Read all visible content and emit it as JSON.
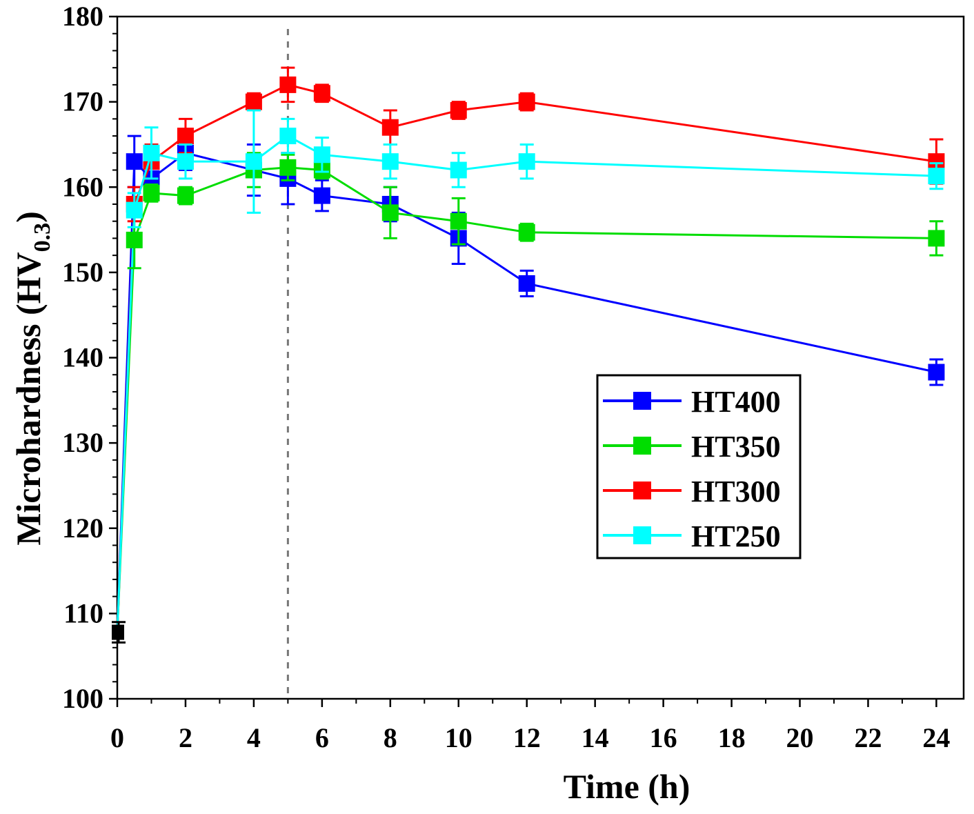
{
  "chart_data": {
    "type": "line",
    "title": "",
    "xlabel": "Time (h)",
    "ylabel": {
      "main": "Microhardness (HV",
      "subscript": "0.3",
      "close": ")"
    },
    "xlim": [
      0,
      24.8
    ],
    "ylim": [
      100,
      180
    ],
    "x_ticks": [
      0,
      2,
      4,
      6,
      8,
      10,
      12,
      14,
      16,
      18,
      20,
      22,
      24
    ],
    "x_tick_labels": [
      "0",
      "2",
      "4",
      "6",
      "8",
      "10",
      "12",
      "14",
      "16",
      "18",
      "20",
      "22",
      "24"
    ],
    "y_ticks": [
      100,
      110,
      120,
      130,
      140,
      150,
      160,
      170,
      180
    ],
    "y_tick_labels": [
      "100",
      "110",
      "120",
      "130",
      "140",
      "150",
      "160",
      "170",
      "180"
    ],
    "reference_line_x": 5,
    "initial_point": {
      "x": 0,
      "y": 107.8,
      "err": 1.2,
      "color": "#000000"
    },
    "legend_position": "center-right",
    "series": [
      {
        "name": "HT400",
        "color": "#0000ff",
        "x": [
          0.5,
          1,
          2,
          4,
          5,
          6,
          8,
          10,
          12,
          24
        ],
        "values": [
          163,
          161,
          164,
          162,
          161,
          159,
          158,
          154,
          148.7,
          138.3
        ],
        "errors": [
          3,
          1.5,
          2,
          3,
          3,
          1.8,
          2,
          3,
          1.5,
          1.5
        ]
      },
      {
        "name": "HT350",
        "color": "#00dd00",
        "x": [
          0.5,
          1,
          2,
          4,
          5,
          6,
          8,
          10,
          12,
          24
        ],
        "values": [
          153.8,
          159.3,
          159,
          162,
          162.3,
          162,
          157,
          156,
          154.7,
          154
        ],
        "errors": [
          3.3,
          1,
          1,
          2,
          1.5,
          1,
          3,
          2.7,
          1,
          2
        ]
      },
      {
        "name": "HT300",
        "color": "#ff0000",
        "x": [
          0.5,
          1,
          2,
          4,
          5,
          6,
          8,
          10,
          12,
          24
        ],
        "values": [
          158,
          163,
          166,
          170,
          172,
          171,
          167,
          169,
          170,
          163
        ],
        "errors": [
          2,
          2,
          2,
          1,
          2,
          1,
          2,
          1,
          1,
          2.6
        ]
      },
      {
        "name": "HT250",
        "color": "#00ffff",
        "x": [
          0.5,
          1,
          2,
          4,
          5,
          6,
          8,
          10,
          12,
          24
        ],
        "values": [
          157.3,
          164,
          163,
          163,
          166,
          163.8,
          163,
          162,
          163,
          161.3
        ],
        "errors": [
          2,
          3,
          2,
          6,
          2,
          2,
          2,
          2,
          2,
          1.5
        ]
      }
    ]
  }
}
